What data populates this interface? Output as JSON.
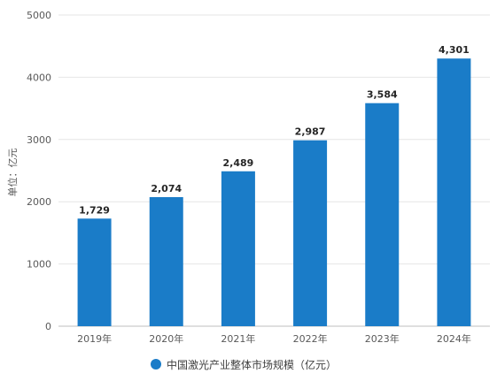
{
  "chart_data": {
    "type": "bar",
    "categories": [
      "2019年",
      "2020年",
      "2021年",
      "2022年",
      "2023年",
      "2024年"
    ],
    "values": [
      1729,
      2074,
      2489,
      2987,
      3584,
      4301
    ],
    "data_labels": [
      "1,729",
      "2,074",
      "2,489",
      "2,987",
      "3,584",
      "4,301"
    ],
    "ylabel": "单位：亿元",
    "ylim": [
      0,
      5000
    ],
    "yticks": [
      0,
      1000,
      2000,
      3000,
      4000,
      5000
    ],
    "grid": true,
    "legend_position": "bottom",
    "series": [
      {
        "name": "中国激光产业整体市场规模（亿元）",
        "values": [
          1729,
          2074,
          2489,
          2987,
          3584,
          4301
        ]
      }
    ],
    "colors": {
      "bar": "#1a7cc8",
      "grid": "#e6e6e6",
      "text": "#595959"
    }
  }
}
